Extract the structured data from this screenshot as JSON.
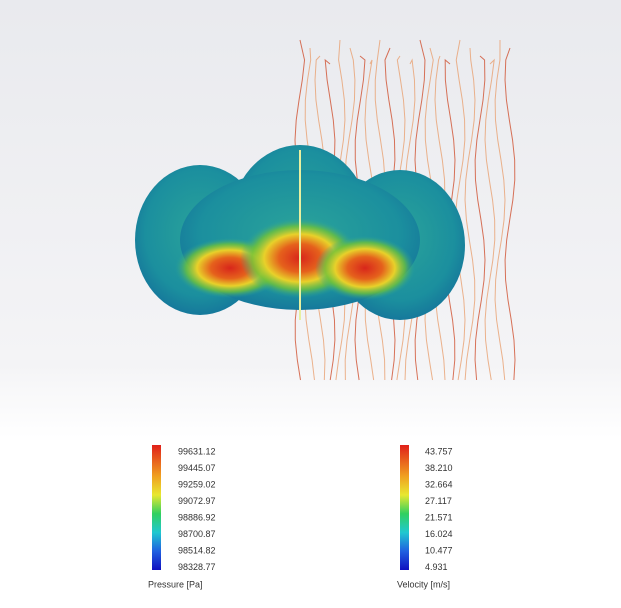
{
  "legends": {
    "pressure": {
      "title": "Pressure [Pa]",
      "labels": [
        "99631.12",
        "99445.07",
        "99259.02",
        "99072.97",
        "98886.92",
        "98700.87",
        "98514.82",
        "98328.77"
      ]
    },
    "velocity": {
      "title": "Velocity [m/s]",
      "labels": [
        "43.757",
        "38.210",
        "32.664",
        "27.117",
        "21.571",
        "16.024",
        "10.477",
        "4.931"
      ]
    }
  }
}
